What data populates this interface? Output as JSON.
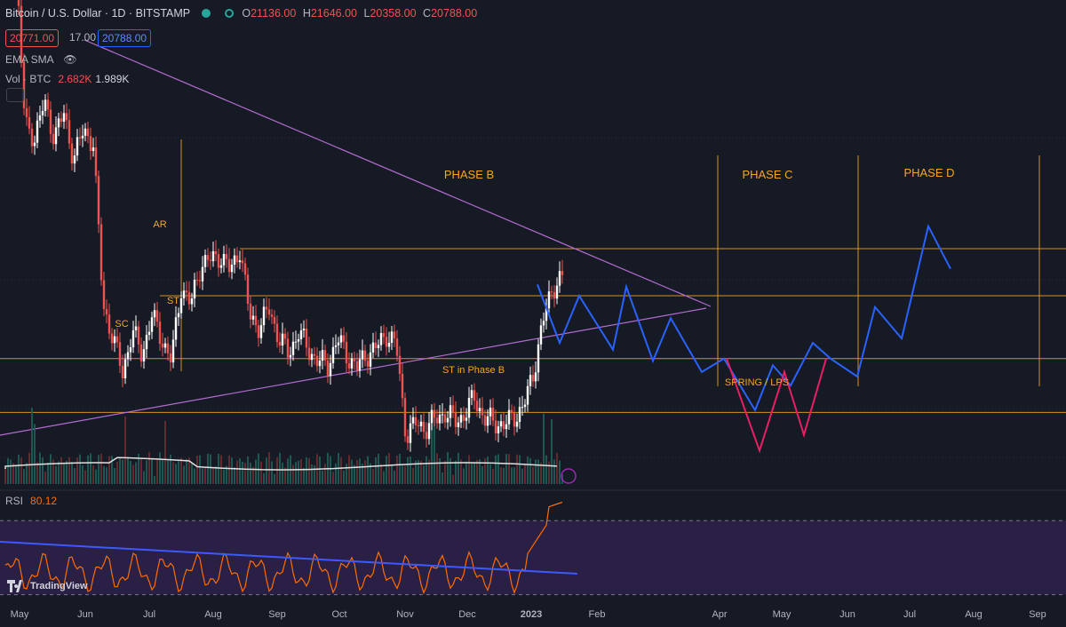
{
  "header": {
    "symbol": "Bitcoin / U.S. Dollar · 1D · BITSTAMP",
    "open_k": "O",
    "open_v": "21136.00",
    "high_k": "H",
    "high_v": "21646.00",
    "low_k": "L",
    "low_v": "20358.00",
    "close_k": "C",
    "close_v": "20788.00",
    "bid": "20771.00",
    "spread": "17.00",
    "ask": "20788.00"
  },
  "indicators": {
    "ema_label": "EMA SMA",
    "vol_label": "Vol · BTC",
    "vol_v1": "2.682K",
    "vol_v2": "1.989K",
    "rsi_label": "RSI",
    "rsi_value": "80.12"
  },
  "logo_text": "TradingView",
  "colors": {
    "background": "#161a25",
    "candle_up": "#ffffff",
    "candle_down": "#ef5350",
    "level_lines": "#f5a623",
    "trendline": "#b46cd1",
    "projection_blue": "#2962ff",
    "projection_pink": "#e91e63",
    "rsi_line": "#ff6d00",
    "rsi_band": "#2a1f44",
    "volume_ma": "#e0e0e0"
  },
  "chart_data": {
    "type": "candlestick",
    "price_range": [
      15000,
      34000
    ],
    "x_axis_labels": [
      "May",
      "Jun",
      "Jul",
      "Aug",
      "Sep",
      "Oct",
      "Nov",
      "Dec",
      "2023",
      "Feb",
      "Apr",
      "May",
      "Jun",
      "Jul",
      "Aug",
      "Sep"
    ],
    "horizontal_levels": [
      24500,
      22400,
      19600,
      17200
    ],
    "phase_labels": [
      "PHASE B",
      "PHASE C",
      "PHASE D"
    ],
    "annotations": [
      "AR",
      "ST",
      "SC",
      "ST in Phase B",
      "SPRING / LPS"
    ],
    "close_path": [
      39500,
      38000,
      30000,
      29500,
      31000,
      29500,
      30500,
      28500,
      29800,
      29200,
      22000,
      20500,
      19000,
      20800,
      19800,
      21500,
      20500,
      19500,
      22800,
      22000,
      23800,
      24000,
      24200,
      23500,
      24500,
      21500,
      21000,
      21800,
      20500,
      19800,
      20800,
      20000,
      19500,
      19300,
      20500,
      19700,
      19200,
      19800,
      20100,
      20700,
      20200,
      16200,
      16700,
      16500,
      16900,
      17200,
      16800,
      17100,
      17900,
      16900,
      16800,
      16600,
      17000,
      17400,
      18900,
      21200,
      22800,
      23200
    ],
    "projection_blue": [
      [
        605,
        22900
      ],
      [
        630,
        20300
      ],
      [
        652,
        22400
      ],
      [
        690,
        20000
      ],
      [
        705,
        22800
      ],
      [
        735,
        19500
      ],
      [
        755,
        21400
      ],
      [
        790,
        19000
      ],
      [
        815,
        19600
      ],
      [
        850,
        17300
      ],
      [
        870,
        19300
      ],
      [
        890,
        18400
      ],
      [
        915,
        20300
      ],
      [
        935,
        19600
      ],
      [
        965,
        18800
      ],
      [
        985,
        21900
      ],
      [
        1015,
        20500
      ],
      [
        1045,
        25500
      ],
      [
        1070,
        23600
      ]
    ],
    "projection_pink": [
      [
        818,
        19600
      ],
      [
        855,
        15500
      ],
      [
        883,
        19000
      ],
      [
        905,
        16200
      ],
      [
        930,
        19600
      ]
    ],
    "rsi": {
      "overbought": 70,
      "oversold": 30,
      "current": 80.12,
      "range": [
        25,
        85
      ]
    }
  }
}
